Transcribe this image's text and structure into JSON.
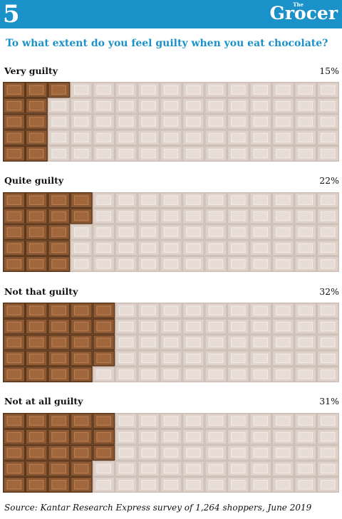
{
  "header": {
    "badge": "5",
    "logo_small": "The",
    "logo_main": "Grocer"
  },
  "chart_data": {
    "type": "bar",
    "title": "To what extent do you feel guilty when you eat chocolate?",
    "categories": [
      "Very guilty",
      "Quite guilty",
      "Not that guilty",
      "Not at all guilty"
    ],
    "values": [
      15,
      22,
      32,
      31
    ],
    "value_labels": [
      "15%",
      "22%",
      "32%",
      "31%"
    ],
    "unit": "%",
    "colors": {
      "filled": "#8b5a35",
      "filled_piece": "#a0673c",
      "filled_highlight": "#c08050",
      "filled_gap": "#5a3418",
      "empty": "#ded2cb",
      "empty_piece": "#e8ddd6",
      "empty_highlight": "#f3ece7",
      "empty_gap": "#cdbeb5",
      "accent": "#1a91c9"
    }
  },
  "source": "Source: Kantar Research Express survey of 1,264 shoppers, June 2019"
}
